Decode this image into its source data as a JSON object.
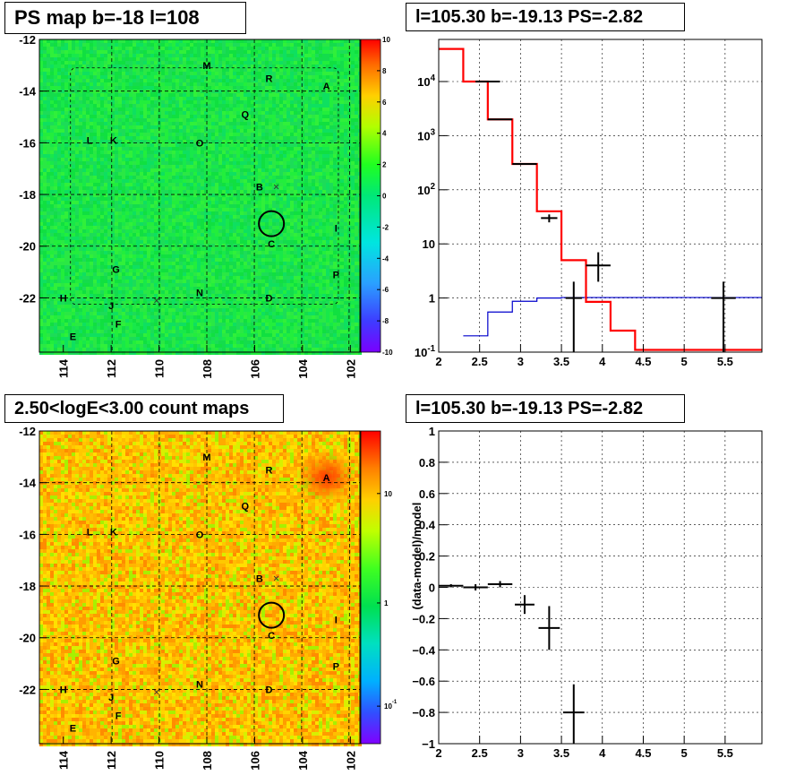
{
  "panels": {
    "ps_map_title": "PS map b=-18 l=108",
    "spectrum_title": "l=105.30 b=-19.13 PS=-2.82",
    "count_map_title": "2.50<logE<3.00 count maps",
    "residual_title": "l=105.30 b=-19.13 PS=-2.82"
  },
  "colors": {
    "model_line": "#ff0000",
    "background_line": "#0000cc",
    "data_points": "#000000",
    "grid": "#000000"
  },
  "chart_data": [
    {
      "id": "ps_map",
      "type": "heatmap",
      "title": "PS map b=-18 l=108",
      "x_ticks": [
        "114",
        "112",
        "110",
        "108",
        "106",
        "104",
        "102"
      ],
      "y_ticks": [
        "-12",
        "-14",
        "-16",
        "-18",
        "-20",
        "-22"
      ],
      "colorbar_ticks": [
        "10",
        "8",
        "6",
        "4",
        "2",
        "0",
        "-2",
        "-4",
        "-6",
        "-8",
        "-10"
      ],
      "colorbar_range": [
        -10,
        10
      ],
      "grid": true,
      "sources": [
        {
          "label": "M",
          "l": 108.0,
          "b": -13.0
        },
        {
          "label": "R",
          "l": 105.4,
          "b": -13.5
        },
        {
          "label": "A",
          "l": 103.0,
          "b": -13.8
        },
        {
          "label": "Q",
          "l": 106.4,
          "b": -14.9
        },
        {
          "label": "L",
          "l": 112.9,
          "b": -15.9
        },
        {
          "label": "K",
          "l": 111.9,
          "b": -15.9
        },
        {
          "label": "O",
          "l": 108.3,
          "b": -16.0
        },
        {
          "label": "B",
          "l": 105.8,
          "b": -17.7
        },
        {
          "label": "C",
          "l": 105.3,
          "b": -19.9
        },
        {
          "label": "I",
          "l": 102.6,
          "b": -19.3
        },
        {
          "label": "G",
          "l": 111.8,
          "b": -20.9
        },
        {
          "label": "P",
          "l": 102.6,
          "b": -21.1
        },
        {
          "label": "H",
          "l": 114.0,
          "b": -22.0
        },
        {
          "label": "N",
          "l": 108.3,
          "b": -21.8
        },
        {
          "label": "D",
          "l": 105.4,
          "b": -22.0
        },
        {
          "label": "J",
          "l": 112.0,
          "b": -22.3
        },
        {
          "label": "F",
          "l": 111.7,
          "b": -23.0
        },
        {
          "label": "E",
          "l": 113.6,
          "b": -23.5
        }
      ],
      "cross_markers": [
        {
          "l": 105.1,
          "b": -17.7
        },
        {
          "l": 110.1,
          "b": -22.1
        }
      ],
      "circle": {
        "l": 105.3,
        "b": -19.13
      }
    },
    {
      "id": "spectrum",
      "type": "line",
      "title": "l=105.30 b=-19.13 PS=-2.82",
      "x_range": [
        2,
        5.95
      ],
      "x_ticks": [
        "2",
        "2.5",
        "3",
        "3.5",
        "4",
        "4.5",
        "5",
        "5.5"
      ],
      "y_scale": "log",
      "y_range": [
        0.1,
        60000
      ],
      "y_ticks": [
        "10^{-1}",
        "1",
        "10",
        "10^{2}",
        "10^{3}",
        "10^{4}"
      ],
      "grid": true,
      "series": [
        {
          "role": "model",
          "color": "#ff0000",
          "bin_edges": [
            2.0,
            2.3,
            2.6,
            2.9,
            3.2,
            3.5,
            3.8,
            4.1,
            4.4,
            4.7,
            5.95
          ],
          "values": [
            40000,
            10000,
            2000,
            300,
            40,
            5,
            0.85,
            0.25,
            0.11,
            0.11
          ]
        },
        {
          "role": "background",
          "color": "#0000cc",
          "bin_edges": [
            2.3,
            2.6,
            2.9,
            3.2,
            3.5,
            3.8,
            4.1,
            4.4,
            4.7,
            5.0,
            5.95
          ],
          "values": [
            0.2,
            0.55,
            0.87,
            1.0,
            1.02,
            1.02,
            1.02,
            1.02,
            1.02,
            1.02
          ]
        },
        {
          "role": "data",
          "color": "#000000",
          "points": [
            {
              "x": 2.6,
              "y": 10000,
              "xlo": 2.45,
              "xhi": 2.75
            },
            {
              "x": 2.74,
              "y": 2000,
              "xlo": 2.6,
              "xhi": 2.9
            },
            {
              "x": 3.02,
              "y": 300,
              "xlo": 2.9,
              "xhi": 3.2
            },
            {
              "x": 3.35,
              "y": 30,
              "xlo": 3.25,
              "xhi": 3.45,
              "ylo": 25,
              "yhi": 35
            },
            {
              "x": 3.65,
              "y": 1,
              "xlo": 3.55,
              "xhi": 3.75,
              "ylo": 0.1,
              "yhi": 2
            },
            {
              "x": 3.95,
              "y": 4,
              "xlo": 3.8,
              "xhi": 4.1,
              "ylo": 2,
              "yhi": 7
            },
            {
              "x": 5.48,
              "y": 1,
              "xlo": 5.33,
              "xhi": 5.63,
              "ylo": 0.1,
              "yhi": 2
            }
          ]
        }
      ]
    },
    {
      "id": "count_map",
      "type": "heatmap",
      "title": "2.50<logE<3.00 count maps",
      "x_ticks": [
        "114",
        "112",
        "110",
        "108",
        "106",
        "104",
        "102"
      ],
      "y_ticks": [
        "-12",
        "-14",
        "-16",
        "-18",
        "-20",
        "-22"
      ],
      "colorbar_scale": "log",
      "colorbar_ticks": [
        "10",
        "1",
        "10^{-1}"
      ],
      "grid": true,
      "sources": [
        {
          "label": "M",
          "l": 108.0,
          "b": -13.0
        },
        {
          "label": "R",
          "l": 105.4,
          "b": -13.5
        },
        {
          "label": "A",
          "l": 103.0,
          "b": -13.8
        },
        {
          "label": "Q",
          "l": 106.4,
          "b": -14.9
        },
        {
          "label": "L",
          "l": 112.9,
          "b": -15.9
        },
        {
          "label": "K",
          "l": 111.9,
          "b": -15.9
        },
        {
          "label": "O",
          "l": 108.3,
          "b": -16.0
        },
        {
          "label": "B",
          "l": 105.8,
          "b": -17.7
        },
        {
          "label": "C",
          "l": 105.3,
          "b": -19.9
        },
        {
          "label": "I",
          "l": 102.6,
          "b": -19.3
        },
        {
          "label": "G",
          "l": 111.8,
          "b": -20.9
        },
        {
          "label": "P",
          "l": 102.6,
          "b": -21.1
        },
        {
          "label": "H",
          "l": 114.0,
          "b": -22.0
        },
        {
          "label": "N",
          "l": 108.3,
          "b": -21.8
        },
        {
          "label": "D",
          "l": 105.4,
          "b": -22.0
        },
        {
          "label": "J",
          "l": 112.0,
          "b": -22.3
        },
        {
          "label": "F",
          "l": 111.7,
          "b": -23.0
        },
        {
          "label": "E",
          "l": 113.6,
          "b": -23.5
        }
      ],
      "cross_markers": [
        {
          "l": 105.1,
          "b": -17.7
        },
        {
          "l": 110.1,
          "b": -22.1
        }
      ],
      "circle": {
        "l": 105.3,
        "b": -19.13
      }
    },
    {
      "id": "residual",
      "type": "scatter",
      "title": "l=105.30 b=-19.13 PS=-2.82",
      "ylabel": "(data-model)/model",
      "x_range": [
        2,
        5.95
      ],
      "y_range": [
        -1,
        1
      ],
      "x_ticks": [
        "2",
        "2.5",
        "3",
        "3.5",
        "4",
        "4.5",
        "5",
        "5.5"
      ],
      "y_ticks": [
        "1",
        "0.8",
        "0.6",
        "0.4",
        "0.2",
        "0",
        "−0.2",
        "−0.4",
        "−0.6",
        "−0.8",
        "−1"
      ],
      "grid": true,
      "points": [
        {
          "x": 2.15,
          "y": 0.01,
          "xlo": 2.0,
          "xhi": 2.3,
          "ylo": 0.0,
          "yhi": 0.02
        },
        {
          "x": 2.45,
          "y": 0.0,
          "xlo": 2.3,
          "xhi": 2.6,
          "ylo": -0.02,
          "yhi": 0.02
        },
        {
          "x": 2.75,
          "y": 0.02,
          "xlo": 2.6,
          "xhi": 2.9,
          "ylo": 0.0,
          "yhi": 0.04
        },
        {
          "x": 3.05,
          "y": -0.11,
          "xlo": 2.93,
          "xhi": 3.17,
          "ylo": -0.17,
          "yhi": -0.05
        },
        {
          "x": 3.35,
          "y": -0.26,
          "xlo": 3.22,
          "xhi": 3.48,
          "ylo": -0.4,
          "yhi": -0.12
        },
        {
          "x": 3.65,
          "y": -0.8,
          "xlo": 3.52,
          "xhi": 3.78,
          "ylo": -1.0,
          "yhi": -0.62
        }
      ]
    }
  ]
}
